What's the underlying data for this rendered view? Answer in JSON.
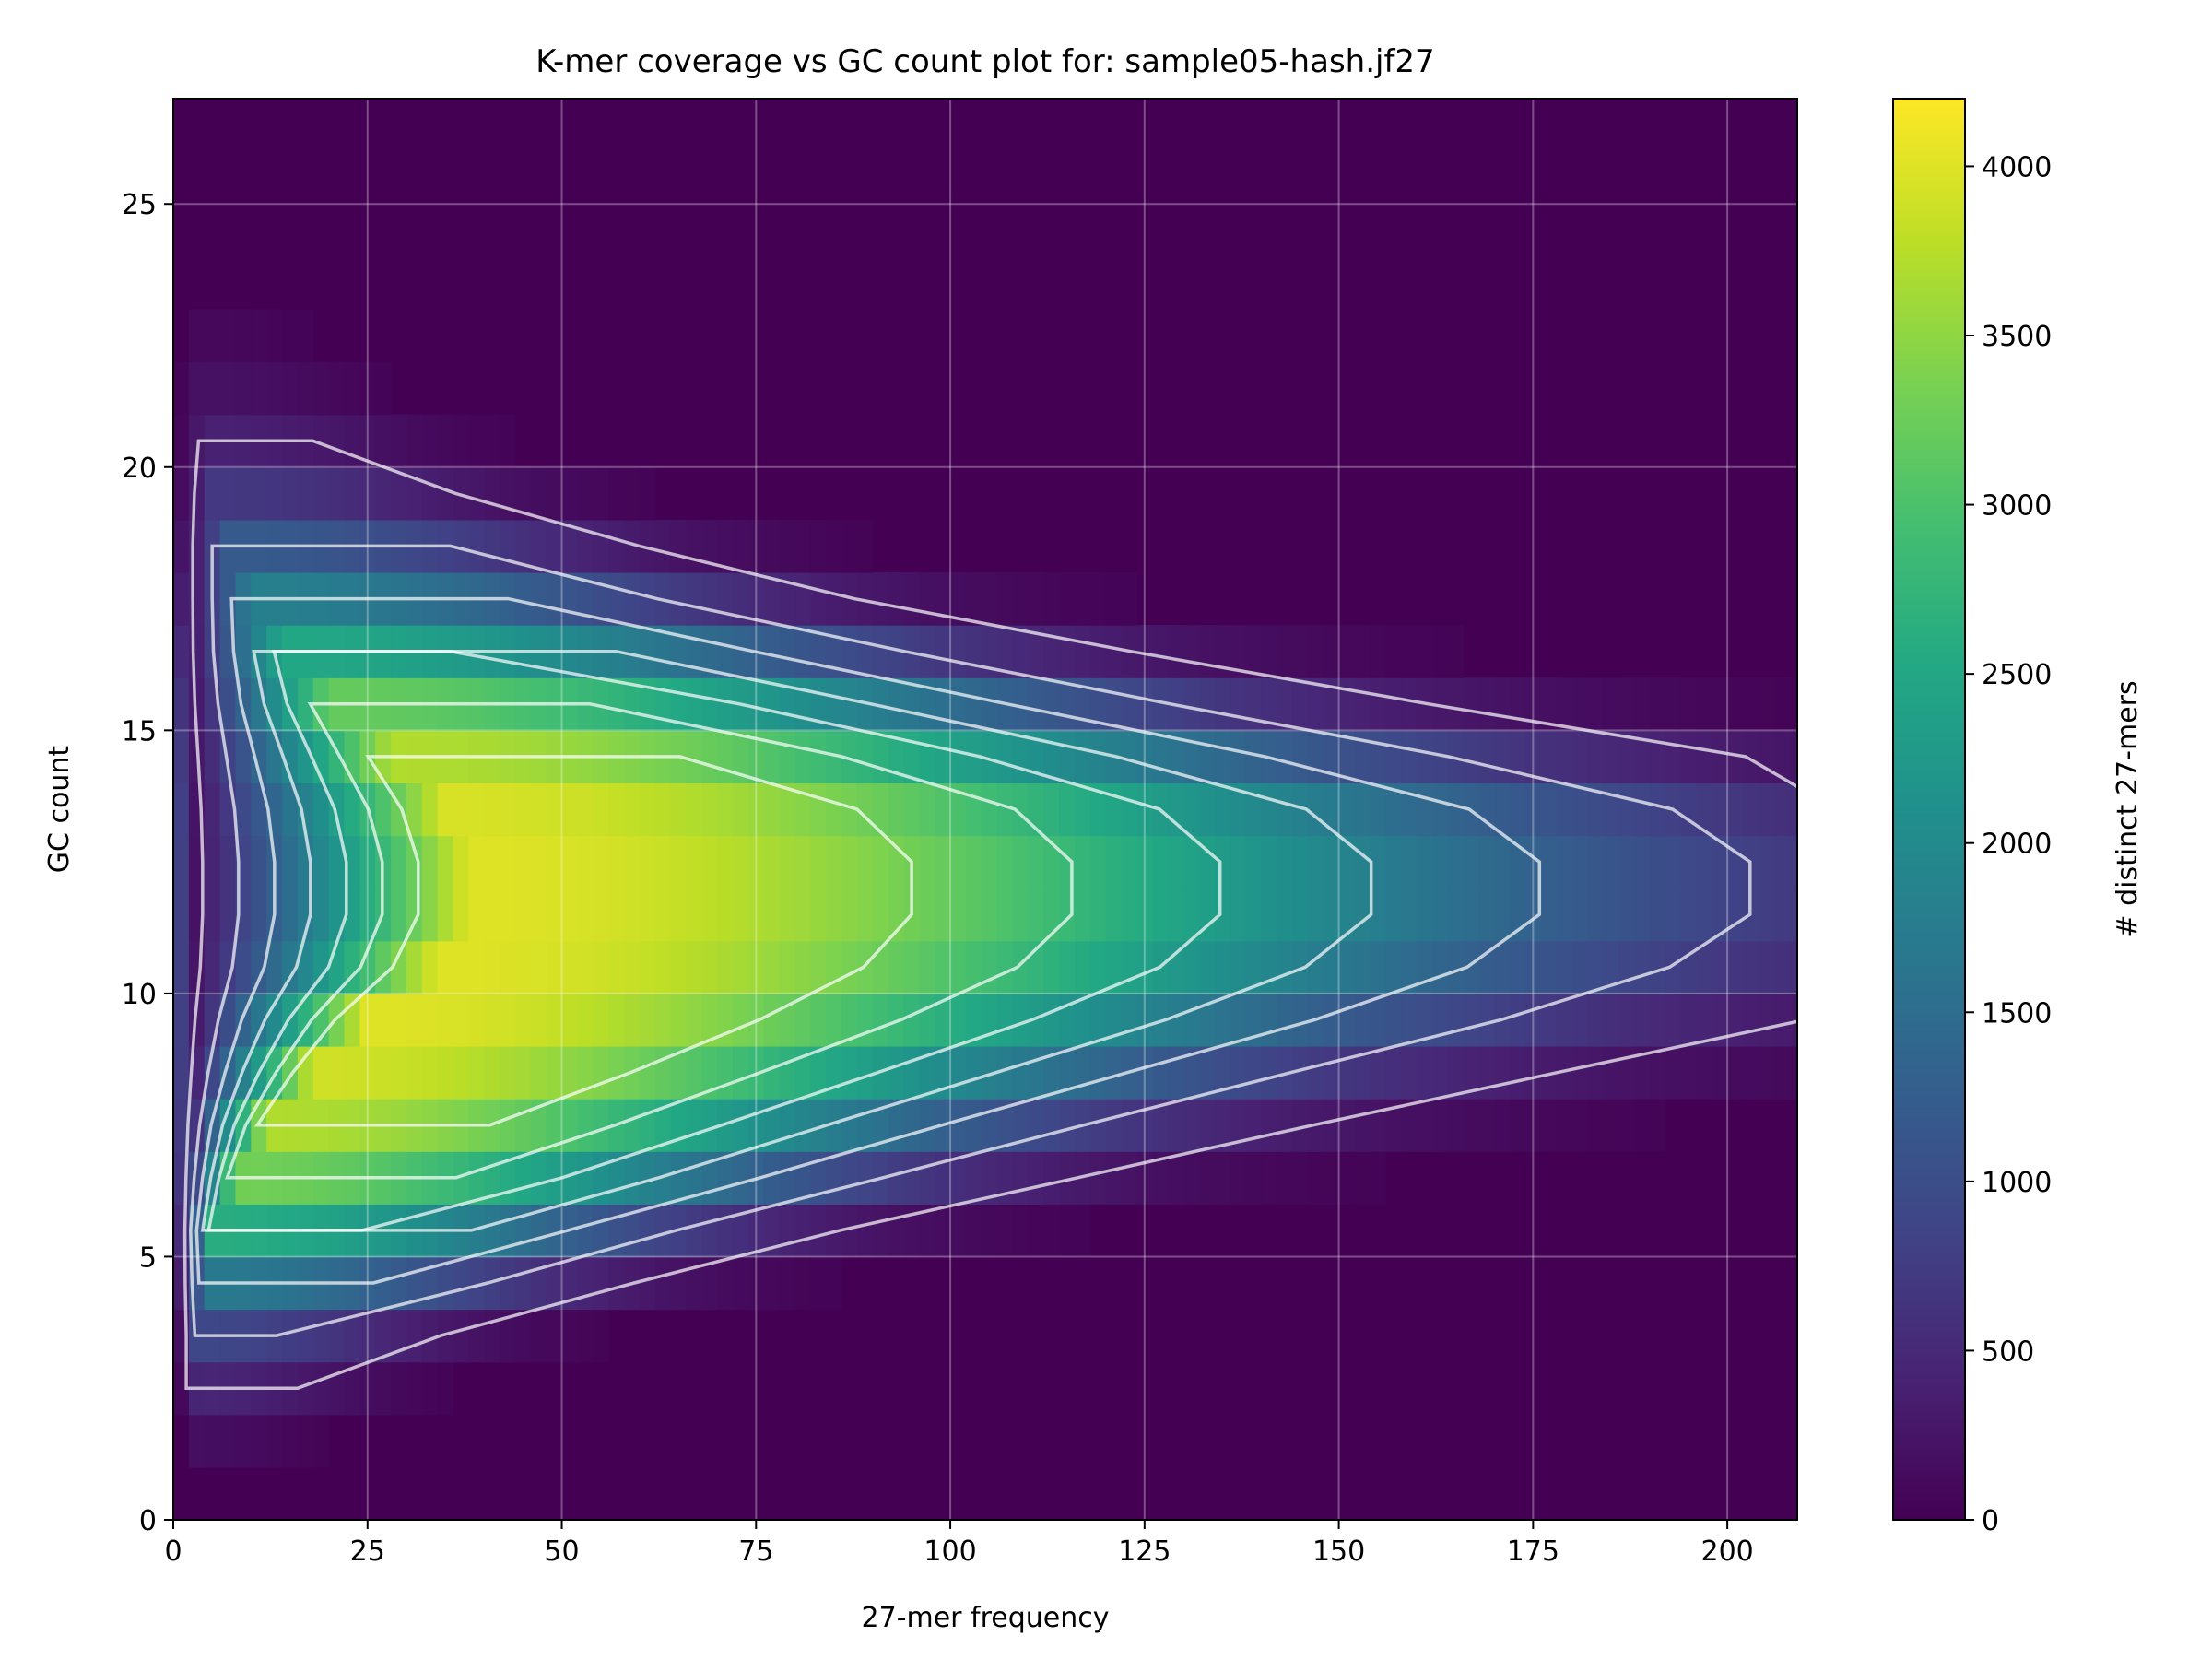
{
  "chart_data": {
    "type": "heatmap",
    "title": "K-mer coverage vs GC count plot for: sample05-hash.jf27",
    "xlabel": "27-mer frequency",
    "ylabel": "GC count",
    "colorbar_label": "# distinct 27-mers",
    "xlim": [
      0,
      209
    ],
    "ylim": [
      0,
      27
    ],
    "x_ticks": [
      0,
      25,
      50,
      75,
      100,
      125,
      150,
      175,
      200
    ],
    "y_ticks": [
      0,
      5,
      10,
      15,
      20,
      25
    ],
    "colorbar_ticks": [
      0,
      500,
      1000,
      1500,
      2000,
      2500,
      3000,
      3500,
      4000
    ],
    "color_range": [
      0,
      4200
    ],
    "colormap": "viridis",
    "grid": true,
    "contours": true,
    "gc_rows": [
      0,
      1,
      2,
      3,
      4,
      5,
      6,
      7,
      8,
      9,
      10,
      11,
      12,
      13,
      14,
      15,
      16,
      17,
      18,
      19,
      20,
      21,
      22,
      23,
      24,
      25,
      26
    ],
    "peak_distinct_kmers_by_gc": [
      40,
      160,
      450,
      900,
      1700,
      2600,
      3300,
      3700,
      3900,
      4000,
      4000,
      4000,
      4000,
      3950,
      3700,
      3200,
      2500,
      1800,
      1200,
      700,
      400,
      200,
      90,
      40,
      15,
      5,
      2
    ],
    "peak_coverage_by_gc": [
      2,
      2,
      2,
      3,
      4,
      5,
      8,
      12,
      18,
      25,
      34,
      38,
      38,
      35,
      28,
      20,
      14,
      10,
      7,
      5,
      4,
      3,
      3,
      2,
      2,
      2,
      2
    ],
    "coverage_spread_by_gc": [
      10,
      15,
      22,
      30,
      42,
      55,
      70,
      85,
      100,
      115,
      125,
      130,
      130,
      125,
      110,
      92,
      75,
      58,
      45,
      34,
      26,
      20,
      16,
      12,
      10,
      8,
      6
    ]
  }
}
